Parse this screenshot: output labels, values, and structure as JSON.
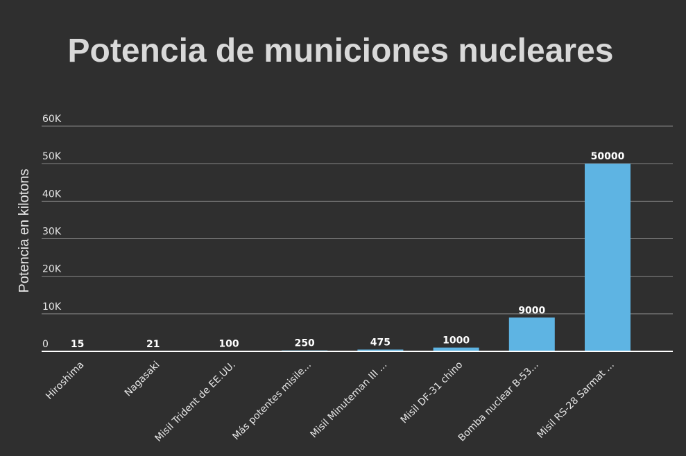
{
  "chart_data": {
    "type": "bar",
    "title": "Potencia de municiones nucleares",
    "xlabel": "",
    "ylabel": "Potencia en kilotons",
    "ylim": [
      0,
      60000
    ],
    "yticks": [
      0,
      10000,
      20000,
      30000,
      40000,
      50000,
      60000
    ],
    "ytick_labels": [
      "0",
      "10K",
      "20K",
      "30K",
      "40K",
      "50K",
      "60K"
    ],
    "grid": true,
    "legend": "none",
    "categories": [
      "Hiroshima",
      "Nagasaki",
      "Misil Trident de EE.UU.",
      "Más potentes misile...",
      "Misil Minuteman III ...",
      "Misil DF-31 chino",
      "Bomba nuclear B-53...",
      "Misil RS-28 Sarmat ..."
    ],
    "values": [
      15,
      21,
      100,
      250,
      475,
      1000,
      9000,
      50000
    ],
    "value_labels": [
      "15",
      "21",
      "100",
      "250",
      "475",
      "1000",
      "9000",
      "50000"
    ],
    "colors": {
      "background": "#2f2f2f",
      "bar": "#5eb4e3",
      "title": "#d9d9d9",
      "text": "#e6e6e6",
      "grid": "#8a8a8a",
      "axis": "#ffffff"
    }
  }
}
